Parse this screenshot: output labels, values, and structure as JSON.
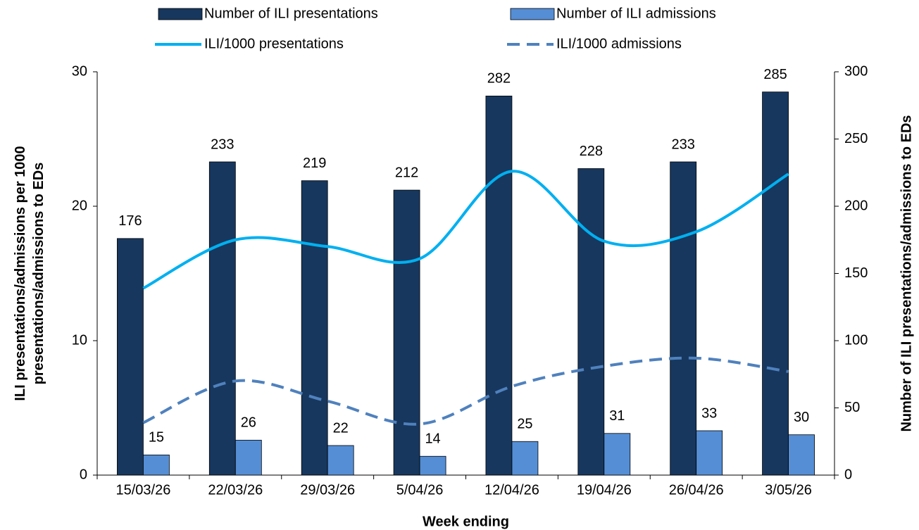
{
  "chart_data": {
    "type": "bar-line",
    "categories": [
      "15/03/26",
      "22/03/26",
      "29/03/26",
      "5/04/26",
      "12/04/26",
      "19/04/26",
      "26/04/26",
      "3/05/26"
    ],
    "xlabel": "Week ending",
    "ylabel": [
      "ILI presentations/admissions  per 1000",
      "presentations/admissions to EDs"
    ],
    "y2label": "Number of ILI presentations/admissions to EDs",
    "ylim": [
      0,
      30
    ],
    "yticks": [
      0,
      10,
      20,
      30
    ],
    "y2lim": [
      0,
      300
    ],
    "y2ticks": [
      0,
      50,
      100,
      150,
      200,
      250,
      300
    ],
    "series": [
      {
        "name": "Number of ILI presentations",
        "type": "bar",
        "axis": "y2",
        "color": "#17375e",
        "values": [
          176,
          233,
          219,
          212,
          282,
          228,
          233,
          285
        ]
      },
      {
        "name": "Number of ILI admissions",
        "type": "bar",
        "axis": "y2",
        "color": "#558ed5",
        "values": [
          15,
          26,
          22,
          14,
          25,
          31,
          33,
          30
        ]
      },
      {
        "name": "ILI/1000 presentations",
        "type": "line",
        "axis": "y",
        "color": "#00b0f0",
        "dashed": false,
        "values": [
          13.9,
          17.5,
          17.0,
          16.1,
          22.6,
          17.4,
          18.1,
          22.4
        ]
      },
      {
        "name": "ILI/1000 admissions",
        "type": "line",
        "axis": "y",
        "color": "#4f81bd",
        "dashed": true,
        "values": [
          3.9,
          7.0,
          5.5,
          3.8,
          6.6,
          8.1,
          8.7,
          7.7
        ]
      }
    ]
  }
}
